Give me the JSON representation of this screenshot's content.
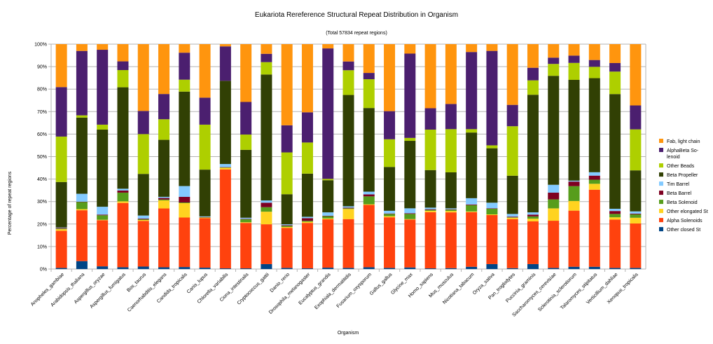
{
  "chart_data": {
    "type": "bar",
    "stacked": true,
    "title": "Eukariota Rereference Structural Repeat Distribution in Organism",
    "subtitle": "(Total 57834 repeat regions)",
    "xlabel": "Organism",
    "ylabel": "Percentage of repeat regions",
    "ylim": [
      0,
      100
    ],
    "yticks": [
      "0%",
      "10%",
      "20%",
      "30%",
      "40%",
      "50%",
      "60%",
      "70%",
      "80%",
      "90%",
      "100%"
    ],
    "grid": true,
    "legend_position": "right",
    "categories": [
      "Anopheles_gambiae",
      "Arabidopsis_thaliana",
      "Aspergillus_oryzae",
      "Aspergillus_fumigatus",
      "Bos_taurus",
      "Caenorhabditis_elegans",
      "Candida_tropicalis",
      "Canis_lupus",
      "Chlorella_variabilis",
      "Ciona_intestinalis",
      "Cryptococcus_gattii",
      "Danio_rerio",
      "Drosophila_melanogaster",
      "Eucalyptus_grandis",
      "Exophiala_dermatitidis",
      "Fusarium_oxysporum",
      "Gallus_gallus",
      "Glycine_max",
      "Homo_sapiens",
      "Mus_musculus",
      "Nicotiana_tabacum",
      "Oryza_sativa",
      "Pan_troglodytes",
      "Puccinia_graminis",
      "Saccharomyces_cerevisiae",
      "Sclerotinia_sclerotiorum",
      "Talaromyces_stipitatus",
      "Verticillium_dahliae",
      "Xenopus_tropicalis"
    ],
    "series": [
      {
        "name": "Other closed St",
        "color": "#004586",
        "values": [
          0.5,
          3.5,
          1.2,
          0.8,
          1.1,
          0.8,
          0.9,
          0.6,
          0.3,
          0.3,
          2.2,
          0.5,
          0.3,
          0.6,
          0.5,
          0.8,
          0.5,
          0.7,
          0.3,
          0.4,
          1.0,
          2.2,
          0.4,
          2.2,
          0.5,
          1.0,
          1.0,
          0.5,
          0.5
        ]
      },
      {
        "name": "Alpha Solenoids",
        "color": "#ff420e",
        "values": [
          16.5,
          22.5,
          20.5,
          28.0,
          20.3,
          26.3,
          22.0,
          22.0,
          44.0,
          20.2,
          17.7,
          17.7,
          20.0,
          21.5,
          21.7,
          27.7,
          22.5,
          21.3,
          25.0,
          24.8,
          24.3,
          21.8,
          21.8,
          19.0,
          21.0,
          24.5,
          34.0,
          21.5,
          19.5
        ]
      },
      {
        "name": "Other elongated St",
        "color": "#ffd320",
        "values": [
          0.7,
          0.5,
          0.2,
          0.7,
          0.4,
          3.6,
          6.4,
          0.3,
          0.8,
          0.3,
          5.6,
          0.4,
          0.5,
          0.4,
          4.5,
          0.3,
          0.5,
          0.2,
          0.6,
          0.6,
          0.3,
          0.3,
          0.6,
          1.2,
          5.5,
          4.2,
          2.6,
          1.0,
          2.5
        ]
      },
      {
        "name": "Beta Solenoid",
        "color": "#579d1c",
        "values": [
          0.3,
          3.2,
          2.0,
          3.8,
          0.3,
          0.4,
          0.3,
          0.1,
          0.1,
          1.3,
          2.0,
          0.5,
          0.4,
          1.0,
          0.3,
          3.5,
          1.0,
          2.3,
          0.4,
          0.6,
          2.8,
          2.5,
          0.2,
          1.0,
          4.0,
          6.5,
          1.8,
          1.5,
          1.5
        ]
      },
      {
        "name": "Beta Barrel",
        "color": "#7e0021",
        "values": [
          0.3,
          0.1,
          0.3,
          0.9,
          0.3,
          0.7,
          2.5,
          0.1,
          0.1,
          0.2,
          2.0,
          0.3,
          1.2,
          0.2,
          0.3,
          0.9,
          0.2,
          0.3,
          0.3,
          0.2,
          0.3,
          0.2,
          0.3,
          0.8,
          3.0,
          2.0,
          1.8,
          1.3,
          0.3
        ]
      },
      {
        "name": "Tim Barrel",
        "color": "#83caff",
        "values": [
          0.2,
          3.5,
          3.5,
          0.8,
          1.4,
          0.5,
          4.8,
          0.3,
          1.4,
          0.5,
          1.0,
          0.4,
          0.6,
          1.5,
          0.6,
          1.2,
          1.2,
          2.2,
          0.7,
          0.4,
          2.8,
          2.5,
          1.2,
          1.0,
          3.5,
          0.4,
          1.5,
          1.0,
          1.0
        ]
      },
      {
        "name": "Beta Propeller",
        "color": "#314004",
        "values": [
          20.2,
          33.7,
          34.3,
          44.2,
          18.5,
          25.5,
          42.0,
          20.8,
          37.0,
          30.2,
          56.0,
          13.3,
          19.0,
          14.3,
          49.5,
          37.2,
          19.5,
          30.0,
          16.7,
          16.0,
          29.2,
          24.2,
          17.0,
          52.3,
          48.5,
          44.0,
          41.5,
          51.0,
          18.0
        ]
      },
      {
        "name": "Other Beads",
        "color": "#aecf00",
        "values": [
          20.2,
          1.0,
          2.2,
          7.5,
          17.7,
          9.2,
          5.3,
          20.0,
          0.0,
          6.8,
          5.5,
          18.5,
          13.7,
          0.6,
          11.0,
          12.8,
          12.3,
          1.3,
          18.0,
          19.2,
          1.5,
          1.3,
          22.0,
          6.4,
          5.3,
          7.4,
          5.0,
          10.0,
          18.0
        ]
      },
      {
        "name": "AlphaBeta So-lenoid",
        "color": "#4b1f6f",
        "values": [
          22.0,
          28.5,
          33.3,
          3.8,
          10.3,
          11.3,
          12.0,
          12.0,
          15.3,
          14.5,
          3.7,
          12.0,
          13.3,
          58.0,
          3.9,
          2.8,
          12.5,
          37.5,
          9.5,
          11.2,
          34.3,
          42.0,
          9.5,
          5.6,
          2.8,
          3.2,
          3.0,
          3.8,
          10.5
        ]
      },
      {
        "name": "Fab, light chain",
        "color": "#ff950e",
        "values": [
          19.1,
          3.0,
          2.5,
          7.5,
          29.7,
          22.3,
          3.8,
          23.8,
          1.0,
          25.7,
          4.3,
          35.9,
          30.0,
          1.9,
          7.7,
          12.8,
          29.8,
          4.2,
          28.5,
          26.6,
          3.5,
          3.0,
          27.0,
          10.5,
          6.0,
          5.0,
          7.0,
          8.4,
          26.9
        ]
      }
    ]
  }
}
